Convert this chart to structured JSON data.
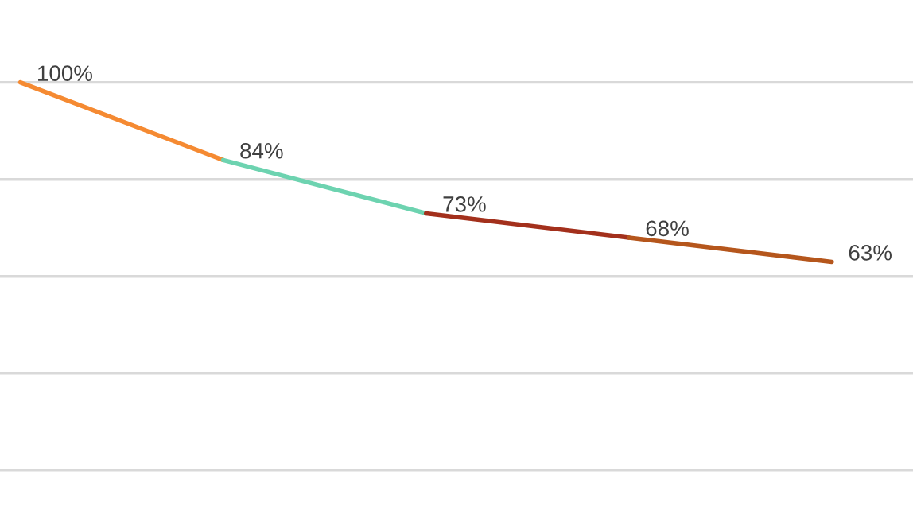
{
  "chart_data": {
    "type": "line",
    "categories": [
      null,
      null,
      null,
      null,
      null
    ],
    "series": [
      {
        "color": "#f58a32",
        "values": [
          100,
          84,
          null,
          null,
          null
        ],
        "value_labels": [
          "100%",
          "84%",
          null,
          null,
          null
        ]
      },
      {
        "color": "#6dd3b0",
        "values": [
          null,
          84,
          73,
          null,
          null
        ]
      },
      {
        "color": "#a3301c",
        "values": [
          null,
          null,
          73,
          68,
          null
        ],
        "value_labels": [
          null,
          null,
          "73%",
          null,
          null
        ]
      },
      {
        "color": "#b5561c",
        "values": [
          null,
          null,
          null,
          68,
          63
        ],
        "value_labels": [
          null,
          null,
          null,
          "68%",
          "63%"
        ]
      }
    ],
    "ylim": [
      7.5,
      117
    ],
    "yticks": [
      {
        "value": 20,
        "label": null
      },
      {
        "value": 40,
        "label": null
      },
      {
        "value": 60,
        "label": null
      },
      {
        "value": 80,
        "label": null
      },
      {
        "value": 100,
        "label": null
      }
    ],
    "grid": "y",
    "marker": "none",
    "line_style": "solid",
    "legend": false
  }
}
